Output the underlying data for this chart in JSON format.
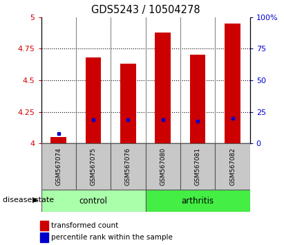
{
  "title": "GDS5243 / 10504278",
  "samples": [
    "GSM567074",
    "GSM567075",
    "GSM567076",
    "GSM567080",
    "GSM567081",
    "GSM567082"
  ],
  "group_label": "disease state",
  "red_values": [
    4.05,
    4.68,
    4.63,
    4.88,
    4.7,
    4.95
  ],
  "blue_values_y": [
    4.08,
    4.185,
    4.185,
    4.185,
    4.175,
    4.2
  ],
  "ylim": [
    4.0,
    5.0
  ],
  "yticks_left": [
    4.0,
    4.25,
    4.5,
    4.75,
    5.0
  ],
  "yticks_right": [
    0,
    25,
    50,
    75,
    100
  ],
  "bar_color": "#cc0000",
  "blue_color": "#0000cc",
  "control_color": "#aaffaa",
  "arthritis_color": "#44ee44",
  "group_bg_color": "#c8c8c8",
  "bar_width": 0.45,
  "legend_red_label": "transformed count",
  "legend_blue_label": "percentile rank within the sample",
  "control_indices": [
    0,
    1,
    2
  ],
  "arthritis_indices": [
    3,
    4,
    5
  ]
}
